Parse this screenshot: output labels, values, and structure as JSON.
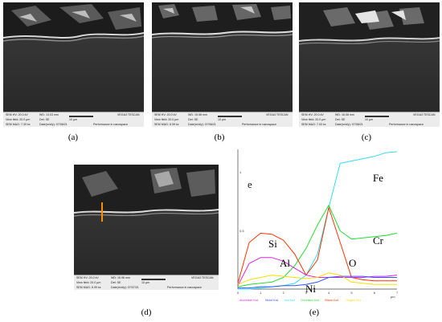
{
  "panel_labels": [
    "(a)",
    "(b)",
    "(c)",
    "(d)",
    "(e)"
  ],
  "sem_panels": [
    {
      "key": "a",
      "hv": "SEM HV: 20.0 kV",
      "wd": "WD: 13.03 mm",
      "vf": "View field: 20.0 µm",
      "det": "Det: SE",
      "scale": "10 µm",
      "mag": "SEM MAG: 7.39 kx",
      "date": "Date(m/d/y): 07/08/21",
      "brand": "VEGA3 TESCAN",
      "perf": "Performance in nanospace"
    },
    {
      "key": "b",
      "hv": "SEM HV: 20.0 kV",
      "wd": "WD: 15.98 mm",
      "vf": "View field: 20.0 µm",
      "det": "Det: SE",
      "scale": "10 µm",
      "mag": "SEM MAG: 6.99 kx",
      "date": "Date(m/d/y): 07/08/21",
      "brand": "VEGA3 TESCAN",
      "perf": "Performance in nanospace"
    },
    {
      "key": "c",
      "hv": "SEM HV: 20.0 kV",
      "wd": "WD: 16.08 mm",
      "vf": "View field: 20.0 µm",
      "det": "Det: SE",
      "scale": "10 µm",
      "mag": "SEM MAG: 7.00 kx",
      "date": "Date(m/d/y): 07/08/21",
      "brand": "VEGA3 TESCAN",
      "perf": "Performance in nanospace"
    },
    {
      "key": "d",
      "hv": "SEM HV: 20.0 kV",
      "wd": "WD: 16.96 mm",
      "vf": "View field: 20.0 µm",
      "det": "Det: SE",
      "scale": "10 µm",
      "mag": "SEM MAG: 6.99 kx",
      "date": "Date(m/d/y): 07/07/21",
      "brand": "VEGA3 TESCAN",
      "perf": "Performance in nanospace"
    }
  ],
  "chart_data": {
    "type": "line",
    "title": "",
    "corner_label": "e",
    "xlabel": "µm",
    "ylabel": "",
    "xlim": [
      0,
      7
    ],
    "ylim": [
      0,
      1.2
    ],
    "x_ticks": [
      "0",
      "1",
      "2",
      "3",
      "4",
      "5",
      "6",
      "7"
    ],
    "y_ticks": [
      "0.5",
      "1"
    ],
    "x": [
      0.0,
      0.5,
      1.0,
      1.5,
      2.0,
      2.5,
      3.0,
      3.5,
      4.0,
      4.5,
      5.0,
      5.5,
      6.0,
      6.5,
      7.0
    ],
    "series": [
      {
        "name": "Fe",
        "color": "#33ddee",
        "values": [
          0.0,
          0.0,
          0.01,
          0.02,
          0.03,
          0.05,
          0.12,
          0.3,
          0.7,
          1.08,
          1.1,
          1.12,
          1.14,
          1.17,
          1.18
        ]
      },
      {
        "name": "Cr",
        "color": "#22dd33",
        "values": [
          0.02,
          0.04,
          0.05,
          0.06,
          0.1,
          0.2,
          0.35,
          0.55,
          0.72,
          0.5,
          0.43,
          0.44,
          0.45,
          0.46,
          0.48
        ]
      },
      {
        "name": "Si",
        "color": "#ff3300",
        "values": [
          0.05,
          0.4,
          0.48,
          0.47,
          0.42,
          0.3,
          0.12,
          0.25,
          0.7,
          0.4,
          0.1,
          0.08,
          0.07,
          0.07,
          0.07
        ]
      },
      {
        "name": "Al",
        "color": "#dd22dd",
        "values": [
          0.03,
          0.22,
          0.27,
          0.27,
          0.24,
          0.18,
          0.12,
          0.1,
          0.1,
          0.1,
          0.1,
          0.1,
          0.11,
          0.11,
          0.12
        ]
      },
      {
        "name": "O",
        "color": "#ffdd00",
        "values": [
          0.04,
          0.08,
          0.1,
          0.12,
          0.11,
          0.1,
          0.09,
          0.1,
          0.14,
          0.12,
          0.06,
          0.05,
          0.04,
          0.04,
          0.04
        ]
      },
      {
        "name": "Ni",
        "color": "#3355ff",
        "values": [
          0.01,
          0.01,
          0.02,
          0.02,
          0.03,
          0.03,
          0.04,
          0.06,
          0.1,
          0.11,
          0.11,
          0.11,
          0.1,
          0.1,
          0.1
        ]
      }
    ],
    "legend": [
      {
        "text": "Aluminium Ka1",
        "color": "#dd22dd"
      },
      {
        "text": "Nickel Ka1",
        "color": "#3355ff"
      },
      {
        "text": "Iron Ka1",
        "color": "#33ddee"
      },
      {
        "text": "Chromium Ka1",
        "color": "#22dd33"
      },
      {
        "text": "Silicon Ka1",
        "color": "#ff3300"
      },
      {
        "text": "Oxygen Ka1",
        "color": "#ffdd00"
      }
    ],
    "series_labels": [
      {
        "text": "Fe",
        "color": "#222222"
      },
      {
        "text": "Cr",
        "color": "#222222"
      },
      {
        "text": "Si",
        "color": "#222222"
      },
      {
        "text": "Al",
        "color": "#222222"
      },
      {
        "text": "O",
        "color": "#222222"
      },
      {
        "text": "Ni",
        "color": "#222222"
      }
    ]
  }
}
